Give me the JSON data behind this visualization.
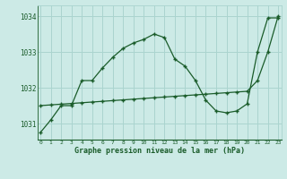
{
  "title": "Graphe pression niveau de la mer (hPa)",
  "bg_color": "#cceae6",
  "grid_color": "#aad4cf",
  "line_color": "#1a5c2a",
  "ylabel_ticks": [
    1031,
    1032,
    1033,
    1034
  ],
  "ylim": [
    1030.55,
    1034.3
  ],
  "xlim": [
    -0.3,
    23.3
  ],
  "xticks": [
    0,
    1,
    2,
    3,
    4,
    5,
    6,
    7,
    8,
    9,
    10,
    11,
    12,
    13,
    14,
    15,
    16,
    17,
    18,
    19,
    20,
    21,
    22,
    23
  ],
  "series1_x": [
    0,
    1,
    2,
    3,
    4,
    5,
    6,
    7,
    8,
    9,
    10,
    11,
    12,
    13,
    14,
    15,
    16,
    17,
    18,
    19,
    20,
    21,
    22,
    23
  ],
  "series1_y": [
    1030.75,
    1031.1,
    1031.5,
    1031.5,
    1032.2,
    1032.2,
    1032.55,
    1032.85,
    1033.1,
    1033.25,
    1033.35,
    1033.5,
    1033.4,
    1032.8,
    1032.6,
    1032.2,
    1031.65,
    1031.35,
    1031.3,
    1031.35,
    1031.55,
    1033.0,
    1033.95,
    1033.95
  ],
  "series2_x": [
    0,
    1,
    2,
    3,
    4,
    5,
    6,
    7,
    8,
    9,
    10,
    11,
    12,
    13,
    14,
    15,
    16,
    17,
    18,
    19,
    20,
    21,
    22,
    23
  ],
  "series2_y": [
    1031.5,
    1031.52,
    1031.54,
    1031.56,
    1031.58,
    1031.6,
    1031.62,
    1031.64,
    1031.66,
    1031.68,
    1031.7,
    1031.72,
    1031.74,
    1031.76,
    1031.78,
    1031.8,
    1031.82,
    1031.84,
    1031.86,
    1031.88,
    1031.9,
    1032.2,
    1033.0,
    1034.0
  ],
  "font_family": "monospace",
  "tick_fontsize": 5.5,
  "xlabel_fontsize": 6.0
}
